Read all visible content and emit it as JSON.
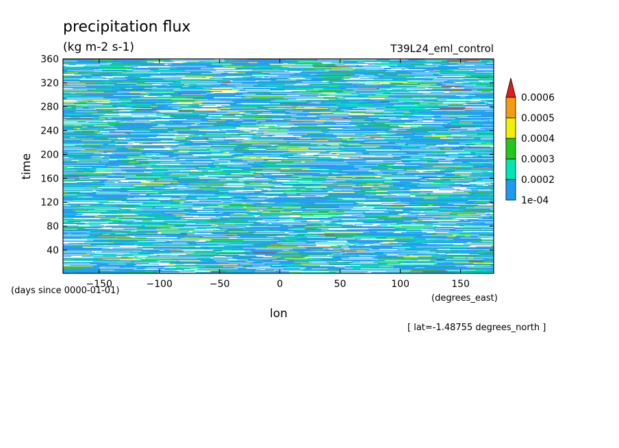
{
  "chart_data": {
    "type": "heatmap",
    "title": "precipitation flux",
    "units": "(kg m-2 s-1)",
    "experiment_label": "T39L24_eml_control",
    "xlabel": "lon",
    "x_units": "(degrees_east)",
    "ylabel": "time",
    "y_units": "(days since 0000-01-01)",
    "slice_label": "[ lat=-1.48755 degrees_north ]",
    "xlim": [
      -180,
      177.5
    ],
    "ylim": [
      1,
      360
    ],
    "x_ticks": [
      -150,
      -100,
      -50,
      0,
      50,
      100,
      150
    ],
    "y_ticks": [
      40,
      80,
      120,
      160,
      200,
      240,
      280,
      320,
      360
    ],
    "colorbar": {
      "levels": [
        "1e-04",
        "0.0002",
        "0.0003",
        "0.0004",
        "0.0005",
        "0.0006"
      ],
      "bins": [
        {
          "range": [
            0.0001,
            0.0002
          ],
          "color": "#1e9bf0"
        },
        {
          "range": [
            0.0002,
            0.0003
          ],
          "color": "#00e6b4"
        },
        {
          "range": [
            0.0003,
            0.0004
          ],
          "color": "#22c81e"
        },
        {
          "range": [
            0.0004,
            0.0005
          ],
          "color": "#f0f000"
        },
        {
          "range": [
            0.0005,
            0.0006
          ],
          "color": "#f39c12"
        },
        {
          "range": [
            0.0006,
            null
          ],
          "color": "#e21b1b"
        }
      ],
      "below_min_color": "#ffffff"
    }
  }
}
